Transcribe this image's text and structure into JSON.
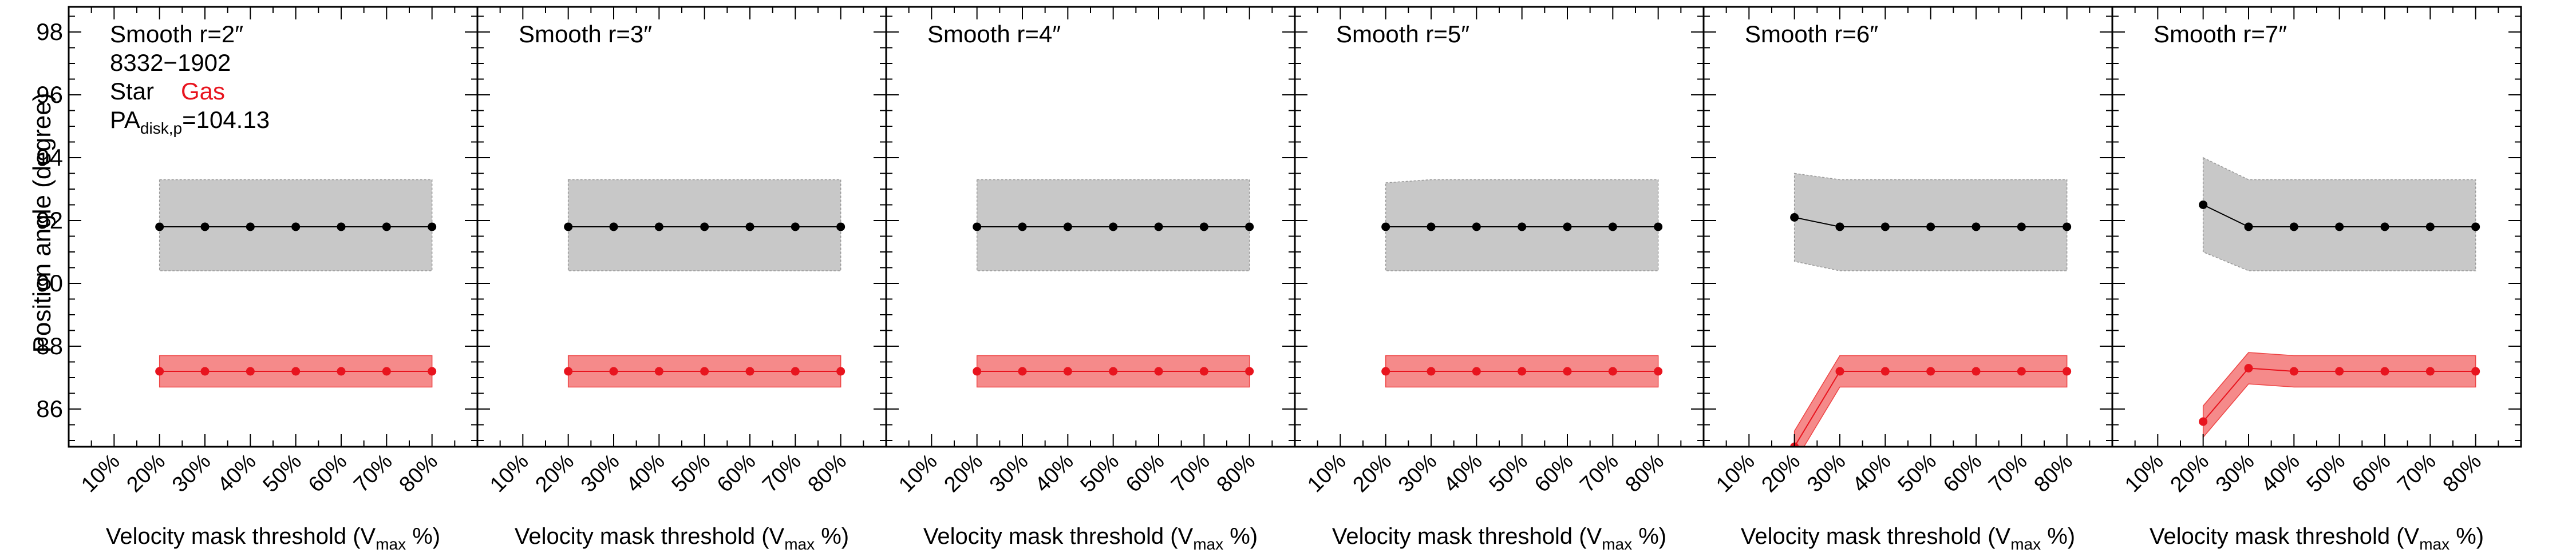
{
  "figure": {
    "ylabel": "Position angle (degree)",
    "xlabel_main": "Velocity mask threshold (V",
    "xlabel_sub": "max",
    "xlabel_tail": " %)",
    "legend": {
      "id_text": "8332−1902",
      "star_label": "Star",
      "gas_label": "Gas",
      "pa_main": "PA",
      "pa_sub": "disk,p",
      "pa_value": "=104.13"
    },
    "colors": {
      "star_line": "#000000",
      "star_band": "#c8c8c8",
      "gas_line": "#e8141e",
      "gas_band": "#f58a8a"
    }
  },
  "chart_data": [
    {
      "type": "line",
      "title": "Smooth r=2″",
      "x_categories": [
        "10%",
        "20%",
        "30%",
        "40%",
        "50%",
        "60%",
        "70%",
        "80%"
      ],
      "x": [
        20,
        30,
        40,
        50,
        60,
        70,
        80
      ],
      "ylim": [
        84.8,
        98.8
      ],
      "yticks": [
        86,
        88,
        90,
        92,
        94,
        96,
        98
      ],
      "series": [
        {
          "name": "Star",
          "values": [
            91.8,
            91.8,
            91.8,
            91.8,
            91.8,
            91.8,
            91.8
          ],
          "lower": [
            90.4,
            90.4,
            90.4,
            90.4,
            90.4,
            90.4,
            90.4
          ],
          "upper": [
            93.3,
            93.3,
            93.3,
            93.3,
            93.3,
            93.3,
            93.3
          ]
        },
        {
          "name": "Gas",
          "values": [
            87.2,
            87.2,
            87.2,
            87.2,
            87.2,
            87.2,
            87.2
          ],
          "lower": [
            86.7,
            86.7,
            86.7,
            86.7,
            86.7,
            86.7,
            86.7
          ],
          "upper": [
            87.7,
            87.7,
            87.7,
            87.7,
            87.7,
            87.7,
            87.7
          ]
        }
      ]
    },
    {
      "type": "line",
      "title": "Smooth r=3″",
      "x_categories": [
        "10%",
        "20%",
        "30%",
        "40%",
        "50%",
        "60%",
        "70%",
        "80%"
      ],
      "x": [
        20,
        30,
        40,
        50,
        60,
        70,
        80
      ],
      "ylim": [
        84.8,
        98.8
      ],
      "series": [
        {
          "name": "Star",
          "values": [
            91.8,
            91.8,
            91.8,
            91.8,
            91.8,
            91.8,
            91.8
          ],
          "lower": [
            90.4,
            90.4,
            90.4,
            90.4,
            90.4,
            90.4,
            90.4
          ],
          "upper": [
            93.3,
            93.3,
            93.3,
            93.3,
            93.3,
            93.3,
            93.3
          ]
        },
        {
          "name": "Gas",
          "values": [
            87.2,
            87.2,
            87.2,
            87.2,
            87.2,
            87.2,
            87.2
          ],
          "lower": [
            86.7,
            86.7,
            86.7,
            86.7,
            86.7,
            86.7,
            86.7
          ],
          "upper": [
            87.7,
            87.7,
            87.7,
            87.7,
            87.7,
            87.7,
            87.7
          ]
        }
      ]
    },
    {
      "type": "line",
      "title": "Smooth r=4″",
      "x_categories": [
        "10%",
        "20%",
        "30%",
        "40%",
        "50%",
        "60%",
        "70%",
        "80%"
      ],
      "x": [
        20,
        30,
        40,
        50,
        60,
        70,
        80
      ],
      "ylim": [
        84.8,
        98.8
      ],
      "series": [
        {
          "name": "Star",
          "values": [
            91.8,
            91.8,
            91.8,
            91.8,
            91.8,
            91.8,
            91.8
          ],
          "lower": [
            90.4,
            90.4,
            90.4,
            90.4,
            90.4,
            90.4,
            90.4
          ],
          "upper": [
            93.3,
            93.3,
            93.3,
            93.3,
            93.3,
            93.3,
            93.3
          ]
        },
        {
          "name": "Gas",
          "values": [
            87.2,
            87.2,
            87.2,
            87.2,
            87.2,
            87.2,
            87.2
          ],
          "lower": [
            86.7,
            86.7,
            86.7,
            86.7,
            86.7,
            86.7,
            86.7
          ],
          "upper": [
            87.7,
            87.7,
            87.7,
            87.7,
            87.7,
            87.7,
            87.7
          ]
        }
      ]
    },
    {
      "type": "line",
      "title": "Smooth r=5″",
      "x_categories": [
        "10%",
        "20%",
        "30%",
        "40%",
        "50%",
        "60%",
        "70%",
        "80%"
      ],
      "x": [
        20,
        30,
        40,
        50,
        60,
        70,
        80
      ],
      "ylim": [
        84.8,
        98.8
      ],
      "series": [
        {
          "name": "Star",
          "values": [
            91.8,
            91.8,
            91.8,
            91.8,
            91.8,
            91.8,
            91.8
          ],
          "lower": [
            90.4,
            90.4,
            90.4,
            90.4,
            90.4,
            90.4,
            90.4
          ],
          "upper": [
            93.2,
            93.3,
            93.3,
            93.3,
            93.3,
            93.3,
            93.3
          ]
        },
        {
          "name": "Gas",
          "values": [
            87.2,
            87.2,
            87.2,
            87.2,
            87.2,
            87.2,
            87.2
          ],
          "lower": [
            86.7,
            86.7,
            86.7,
            86.7,
            86.7,
            86.7,
            86.7
          ],
          "upper": [
            87.7,
            87.7,
            87.7,
            87.7,
            87.7,
            87.7,
            87.7
          ]
        }
      ]
    },
    {
      "type": "line",
      "title": "Smooth r=6″",
      "x_categories": [
        "10%",
        "20%",
        "30%",
        "40%",
        "50%",
        "60%",
        "70%",
        "80%"
      ],
      "x": [
        20,
        30,
        40,
        50,
        60,
        70,
        80
      ],
      "ylim": [
        84.8,
        98.8
      ],
      "series": [
        {
          "name": "Star",
          "values": [
            92.1,
            91.8,
            91.8,
            91.8,
            91.8,
            91.8,
            91.8
          ],
          "lower": [
            90.7,
            90.4,
            90.4,
            90.4,
            90.4,
            90.4,
            90.4
          ],
          "upper": [
            93.5,
            93.3,
            93.3,
            93.3,
            93.3,
            93.3,
            93.3
          ]
        },
        {
          "name": "Gas",
          "values": [
            84.8,
            87.2,
            87.2,
            87.2,
            87.2,
            87.2,
            87.2
          ],
          "lower": [
            84.3,
            86.7,
            86.7,
            86.7,
            86.7,
            86.7,
            86.7
          ],
          "upper": [
            85.3,
            87.7,
            87.7,
            87.7,
            87.7,
            87.7,
            87.7
          ]
        }
      ]
    },
    {
      "type": "line",
      "title": "Smooth r=7″",
      "x_categories": [
        "10%",
        "20%",
        "30%",
        "40%",
        "50%",
        "60%",
        "70%",
        "80%"
      ],
      "x": [
        20,
        30,
        40,
        50,
        60,
        70,
        80
      ],
      "ylim": [
        84.8,
        98.8
      ],
      "series": [
        {
          "name": "Star",
          "values": [
            92.5,
            91.8,
            91.8,
            91.8,
            91.8,
            91.8,
            91.8
          ],
          "lower": [
            91.0,
            90.4,
            90.4,
            90.4,
            90.4,
            90.4,
            90.4
          ],
          "upper": [
            94.0,
            93.3,
            93.3,
            93.3,
            93.3,
            93.3,
            93.3
          ]
        },
        {
          "name": "Gas",
          "values": [
            85.6,
            87.3,
            87.2,
            87.2,
            87.2,
            87.2,
            87.2
          ],
          "lower": [
            85.1,
            86.8,
            86.7,
            86.7,
            86.7,
            86.7,
            86.7
          ],
          "upper": [
            86.1,
            87.8,
            87.7,
            87.7,
            87.7,
            87.7,
            87.7
          ]
        }
      ]
    }
  ]
}
